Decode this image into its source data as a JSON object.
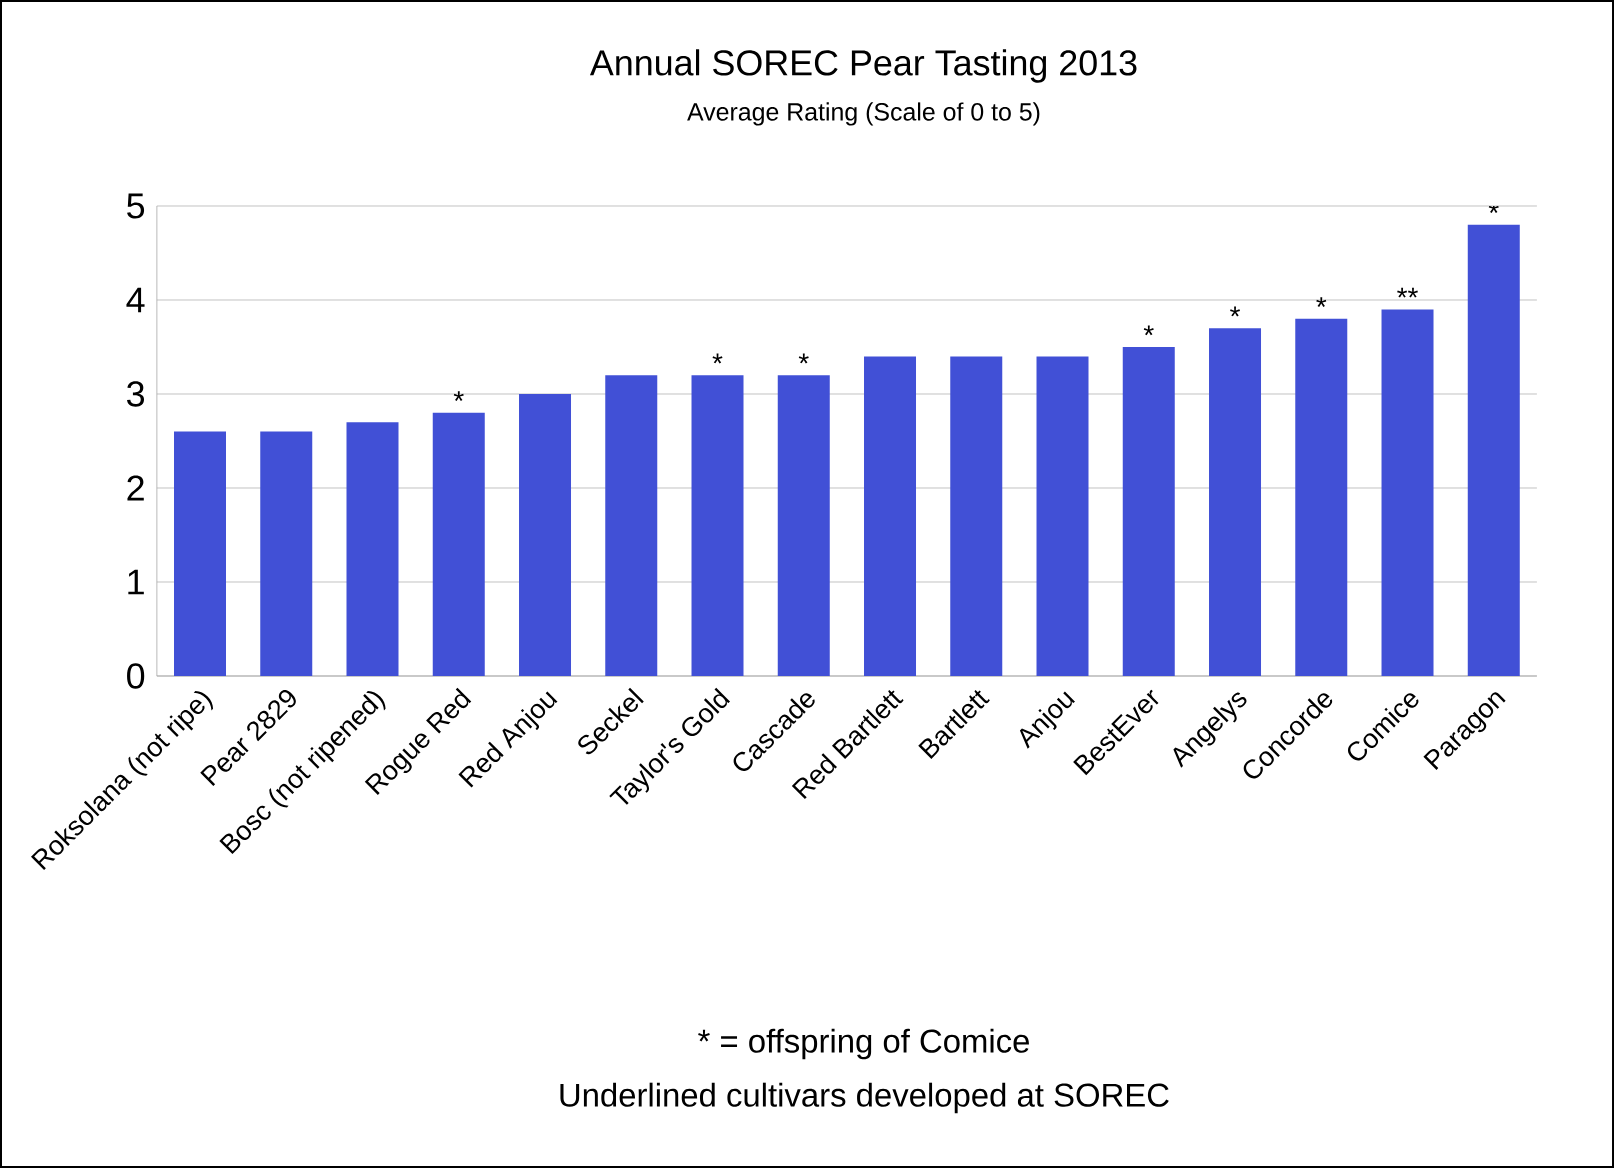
{
  "chart_data": {
    "type": "bar",
    "title": "Annual SOREC Pear Tasting 2013",
    "subtitle": "Average Rating (Scale of 0 to 5)",
    "categories": [
      "Roksolana (not ripe)",
      "Pear 2829",
      "Bosc (not ripened)",
      "Rogue Red",
      "Red Anjou",
      "Seckel",
      "Taylor's Gold",
      "Cascade",
      "Red Bartlett",
      "Bartlett",
      "Anjou",
      "BestEver",
      "Angelys",
      "Concorde",
      "Comice",
      "Paragon"
    ],
    "values": [
      2.6,
      2.6,
      2.7,
      2.8,
      3.0,
      3.2,
      3.2,
      3.2,
      3.4,
      3.4,
      3.4,
      3.5,
      3.7,
      3.8,
      3.9,
      4.8
    ],
    "value_labels": [
      null,
      null,
      null,
      "*",
      null,
      null,
      "*",
      "*",
      null,
      null,
      null,
      "*",
      "*",
      "*",
      "**",
      "*"
    ],
    "color": "#4150d6",
    "ylim": [
      0,
      5
    ],
    "yticks": [
      0,
      1,
      2,
      3,
      4,
      5
    ],
    "grid": "y",
    "annotations": [
      "* = offspring of Comice",
      "Underlined cultivars developed at SOREC"
    ]
  }
}
